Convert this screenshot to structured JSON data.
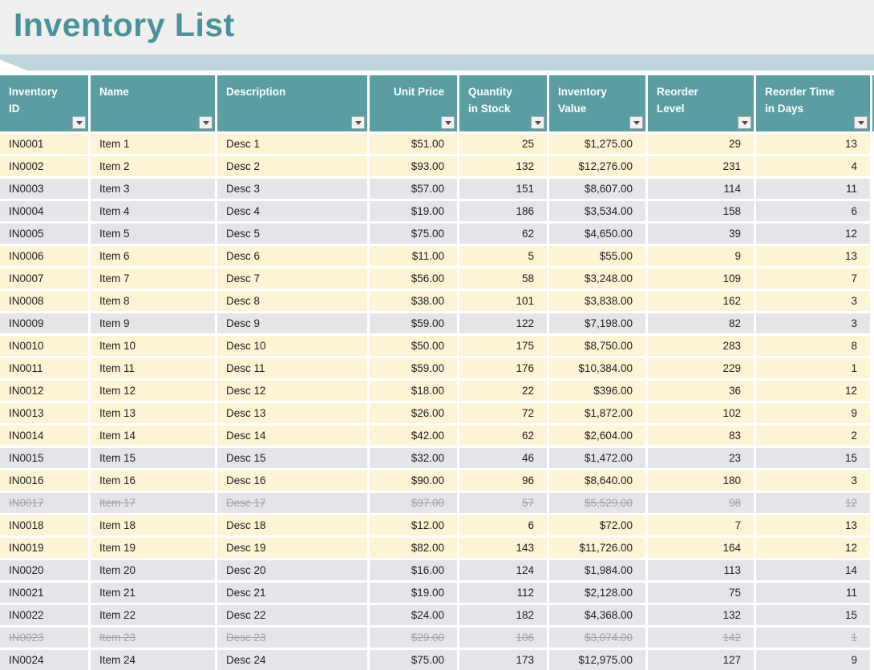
{
  "title": "Inventory List",
  "colors": {
    "title_band_bg": "#EFEFED",
    "title_text": "#4A929B",
    "ribbon": "#BED7DA",
    "header_teal": "#5A9EA3",
    "band_cream": "#FDF3D5",
    "band_gray": "#E4E5E9",
    "struck_text": "#A0A2A7"
  },
  "table": {
    "columns": [
      {
        "id": "inventory-id",
        "label": "Inventory\nID",
        "align": "left",
        "header_align": "left"
      },
      {
        "id": "name",
        "label": "Name",
        "align": "left",
        "header_align": "left"
      },
      {
        "id": "description",
        "label": "Description",
        "align": "left",
        "header_align": "left"
      },
      {
        "id": "unit-price",
        "label": "Unit Price",
        "align": "right",
        "header_align": "right"
      },
      {
        "id": "quantity-in-stock",
        "label": "Quantity\nin Stock",
        "align": "right",
        "header_align": "left"
      },
      {
        "id": "inventory-value",
        "label": "Inventory\nValue",
        "align": "right",
        "header_align": "left"
      },
      {
        "id": "reorder-level",
        "label": "Reorder\nLevel",
        "align": "right",
        "header_align": "left"
      },
      {
        "id": "reorder-time-in-days",
        "label": "Reorder Time\nin Days",
        "align": "right",
        "header_align": "left"
      }
    ],
    "rows": [
      {
        "cells": [
          "IN0001",
          "Item 1",
          "Desc 1",
          "$51.00",
          "25",
          "$1,275.00",
          "29",
          "13"
        ],
        "band": "cream",
        "struck": false
      },
      {
        "cells": [
          "IN0002",
          "Item 2",
          "Desc 2",
          "$93.00",
          "132",
          "$12,276.00",
          "231",
          "4"
        ],
        "band": "cream",
        "struck": false
      },
      {
        "cells": [
          "IN0003",
          "Item 3",
          "Desc 3",
          "$57.00",
          "151",
          "$8,607.00",
          "114",
          "11"
        ],
        "band": "gray",
        "struck": false
      },
      {
        "cells": [
          "IN0004",
          "Item 4",
          "Desc 4",
          "$19.00",
          "186",
          "$3,534.00",
          "158",
          "6"
        ],
        "band": "gray",
        "struck": false
      },
      {
        "cells": [
          "IN0005",
          "Item 5",
          "Desc 5",
          "$75.00",
          "62",
          "$4,650.00",
          "39",
          "12"
        ],
        "band": "gray",
        "struck": false
      },
      {
        "cells": [
          "IN0006",
          "Item 6",
          "Desc 6",
          "$11.00",
          "5",
          "$55.00",
          "9",
          "13"
        ],
        "band": "cream",
        "struck": false
      },
      {
        "cells": [
          "IN0007",
          "Item 7",
          "Desc 7",
          "$56.00",
          "58",
          "$3,248.00",
          "109",
          "7"
        ],
        "band": "cream",
        "struck": false
      },
      {
        "cells": [
          "IN0008",
          "Item 8",
          "Desc 8",
          "$38.00",
          "101",
          "$3,838.00",
          "162",
          "3"
        ],
        "band": "cream",
        "struck": false
      },
      {
        "cells": [
          "IN0009",
          "Item 9",
          "Desc 9",
          "$59.00",
          "122",
          "$7,198.00",
          "82",
          "3"
        ],
        "band": "gray",
        "struck": false
      },
      {
        "cells": [
          "IN0010",
          "Item 10",
          "Desc 10",
          "$50.00",
          "175",
          "$8,750.00",
          "283",
          "8"
        ],
        "band": "cream",
        "struck": false
      },
      {
        "cells": [
          "IN0011",
          "Item 11",
          "Desc 11",
          "$59.00",
          "176",
          "$10,384.00",
          "229",
          "1"
        ],
        "band": "cream",
        "struck": false
      },
      {
        "cells": [
          "IN0012",
          "Item 12",
          "Desc 12",
          "$18.00",
          "22",
          "$396.00",
          "36",
          "12"
        ],
        "band": "cream",
        "struck": false
      },
      {
        "cells": [
          "IN0013",
          "Item 13",
          "Desc 13",
          "$26.00",
          "72",
          "$1,872.00",
          "102",
          "9"
        ],
        "band": "cream",
        "struck": false
      },
      {
        "cells": [
          "IN0014",
          "Item 14",
          "Desc 14",
          "$42.00",
          "62",
          "$2,604.00",
          "83",
          "2"
        ],
        "band": "cream",
        "struck": false
      },
      {
        "cells": [
          "IN0015",
          "Item 15",
          "Desc 15",
          "$32.00",
          "46",
          "$1,472.00",
          "23",
          "15"
        ],
        "band": "gray",
        "struck": false
      },
      {
        "cells": [
          "IN0016",
          "Item 16",
          "Desc 16",
          "$90.00",
          "96",
          "$8,640.00",
          "180",
          "3"
        ],
        "band": "cream",
        "struck": false
      },
      {
        "cells": [
          "IN0017",
          "Item 17",
          "Desc 17",
          "$97.00",
          "57",
          "$5,529.00",
          "98",
          "12"
        ],
        "band": "gray",
        "struck": true
      },
      {
        "cells": [
          "IN0018",
          "Item 18",
          "Desc 18",
          "$12.00",
          "6",
          "$72.00",
          "7",
          "13"
        ],
        "band": "cream",
        "struck": false
      },
      {
        "cells": [
          "IN0019",
          "Item 19",
          "Desc 19",
          "$82.00",
          "143",
          "$11,726.00",
          "164",
          "12"
        ],
        "band": "cream",
        "struck": false
      },
      {
        "cells": [
          "IN0020",
          "Item 20",
          "Desc 20",
          "$16.00",
          "124",
          "$1,984.00",
          "113",
          "14"
        ],
        "band": "gray",
        "struck": false
      },
      {
        "cells": [
          "IN0021",
          "Item 21",
          "Desc 21",
          "$19.00",
          "112",
          "$2,128.00",
          "75",
          "11"
        ],
        "band": "gray",
        "struck": false
      },
      {
        "cells": [
          "IN0022",
          "Item 22",
          "Desc 22",
          "$24.00",
          "182",
          "$4,368.00",
          "132",
          "15"
        ],
        "band": "gray",
        "struck": false
      },
      {
        "cells": [
          "IN0023",
          "Item 23",
          "Desc 23",
          "$29.00",
          "106",
          "$3,074.00",
          "142",
          "1"
        ],
        "band": "gray",
        "struck": true
      },
      {
        "cells": [
          "IN0024",
          "Item 24",
          "Desc 24",
          "$75.00",
          "173",
          "$12,975.00",
          "127",
          "9"
        ],
        "band": "gray",
        "struck": false
      }
    ]
  }
}
